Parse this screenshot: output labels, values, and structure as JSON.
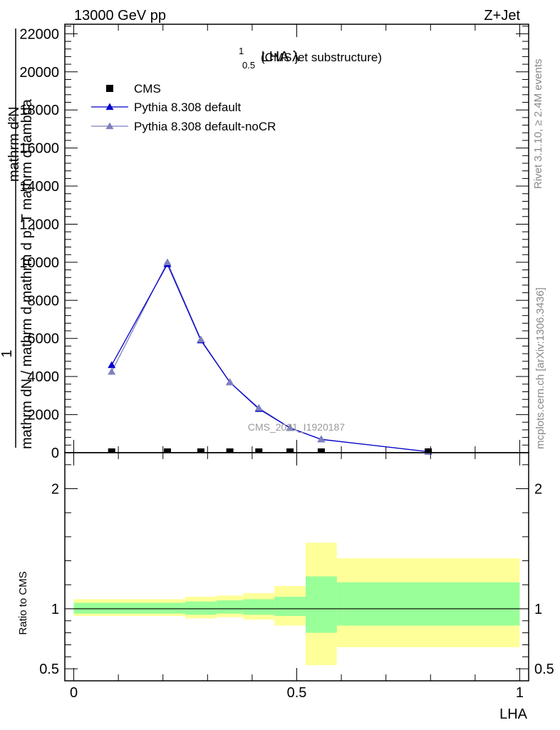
{
  "header": {
    "left": "13000 GeV pp",
    "right": "Z+Jet"
  },
  "side_labels": {
    "rivet": "Rivet 3.1.10, ≥ 2.4M events",
    "mcplots": "mcplots.cern.ch [arXiv:1306.3436]"
  },
  "colors": {
    "data": "#000000",
    "pythia_default": "#0000cc",
    "pythia_nocr": "#7f7fbf",
    "band_inner": "#99ff99",
    "band_outer": "#ffff99"
  },
  "chart_data": [
    {
      "type": "line",
      "title": "LHA λ",
      "title_sup": "1",
      "title_sub": "0.5",
      "title_suffix": "(CMS jet substructure)",
      "ylabel_lines": [
        "1",
        "mathrm dN / mathrm d mathrm d p_T mathrm d lambda",
        "mathrm d²N"
      ],
      "watermark": "CMS_2021_I1920187",
      "legend_position": "top-left",
      "xlim": [
        -0.02,
        1.02
      ],
      "ylim": [
        0,
        22500
      ],
      "yticks": [
        0,
        2000,
        4000,
        6000,
        8000,
        10000,
        12000,
        14000,
        16000,
        18000,
        20000,
        22000
      ],
      "ytick_labels": [
        "0",
        "2000",
        "4000",
        "6000",
        "8000",
        "10000",
        "12000",
        "14000",
        "16000",
        "18000",
        "20000",
        "22000"
      ],
      "series": [
        {
          "name": "CMS",
          "marker": "square",
          "x": [
            0.085,
            0.21,
            0.285,
            0.35,
            0.415,
            0.485,
            0.555,
            0.795
          ],
          "y": [
            0,
            0,
            0,
            0,
            0,
            0,
            0,
            0
          ]
        },
        {
          "name": "Pythia 8.308 default",
          "marker": "triangle",
          "x": [
            0.085,
            0.21,
            0.285,
            0.35,
            0.415,
            0.485,
            0.555,
            0.795
          ],
          "y": [
            4600,
            9900,
            5900,
            3700,
            2300,
            1300,
            700,
            50
          ]
        },
        {
          "name": "Pythia 8.308 default-noCR",
          "marker": "triangle",
          "x": [
            0.085,
            0.21,
            0.285,
            0.35,
            0.415,
            0.485,
            0.555,
            0.795
          ],
          "y": [
            4250,
            10000,
            5950,
            3700,
            2350,
            1300,
            700,
            50
          ]
        }
      ]
    },
    {
      "type": "area",
      "ylabel": "Ratio to CMS",
      "xlabel": "LHA",
      "xlim": [
        -0.02,
        1.02
      ],
      "ylim": [
        0.4,
        2.3
      ],
      "yticks": [
        0.5,
        1,
        2
      ],
      "ytick_labels": [
        "0.5",
        "1",
        "2"
      ],
      "xticks": [
        0,
        0.5,
        1
      ],
      "xtick_labels": [
        "0",
        "0.5",
        "1"
      ],
      "reference_line": 1,
      "bands": {
        "edges": [
          0,
          0.17,
          0.25,
          0.32,
          0.38,
          0.45,
          0.52,
          0.59,
          1.0
        ],
        "inner_low": [
          0.96,
          0.96,
          0.95,
          0.96,
          0.95,
          0.94,
          0.8,
          0.86
        ],
        "inner_high": [
          1.05,
          1.05,
          1.06,
          1.07,
          1.08,
          1.1,
          1.27,
          1.22
        ],
        "outer_low": [
          0.94,
          0.94,
          0.92,
          0.93,
          0.91,
          0.86,
          0.53,
          0.68
        ],
        "outer_high": [
          1.08,
          1.08,
          1.1,
          1.11,
          1.13,
          1.19,
          1.55,
          1.42
        ]
      }
    }
  ]
}
